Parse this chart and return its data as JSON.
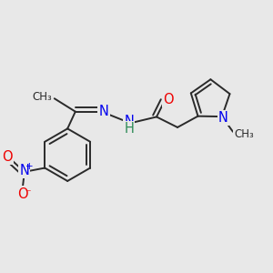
{
  "bg_color": "#e8e8e8",
  "bond_color": "#2a2a2a",
  "bond_width": 1.4,
  "atom_colors": {
    "N": "#0000ee",
    "O": "#ee0000",
    "H": "#2e8b57",
    "C": "#2a2a2a"
  },
  "dbo": 0.018,
  "fs": 10.5,
  "fs_small": 9
}
